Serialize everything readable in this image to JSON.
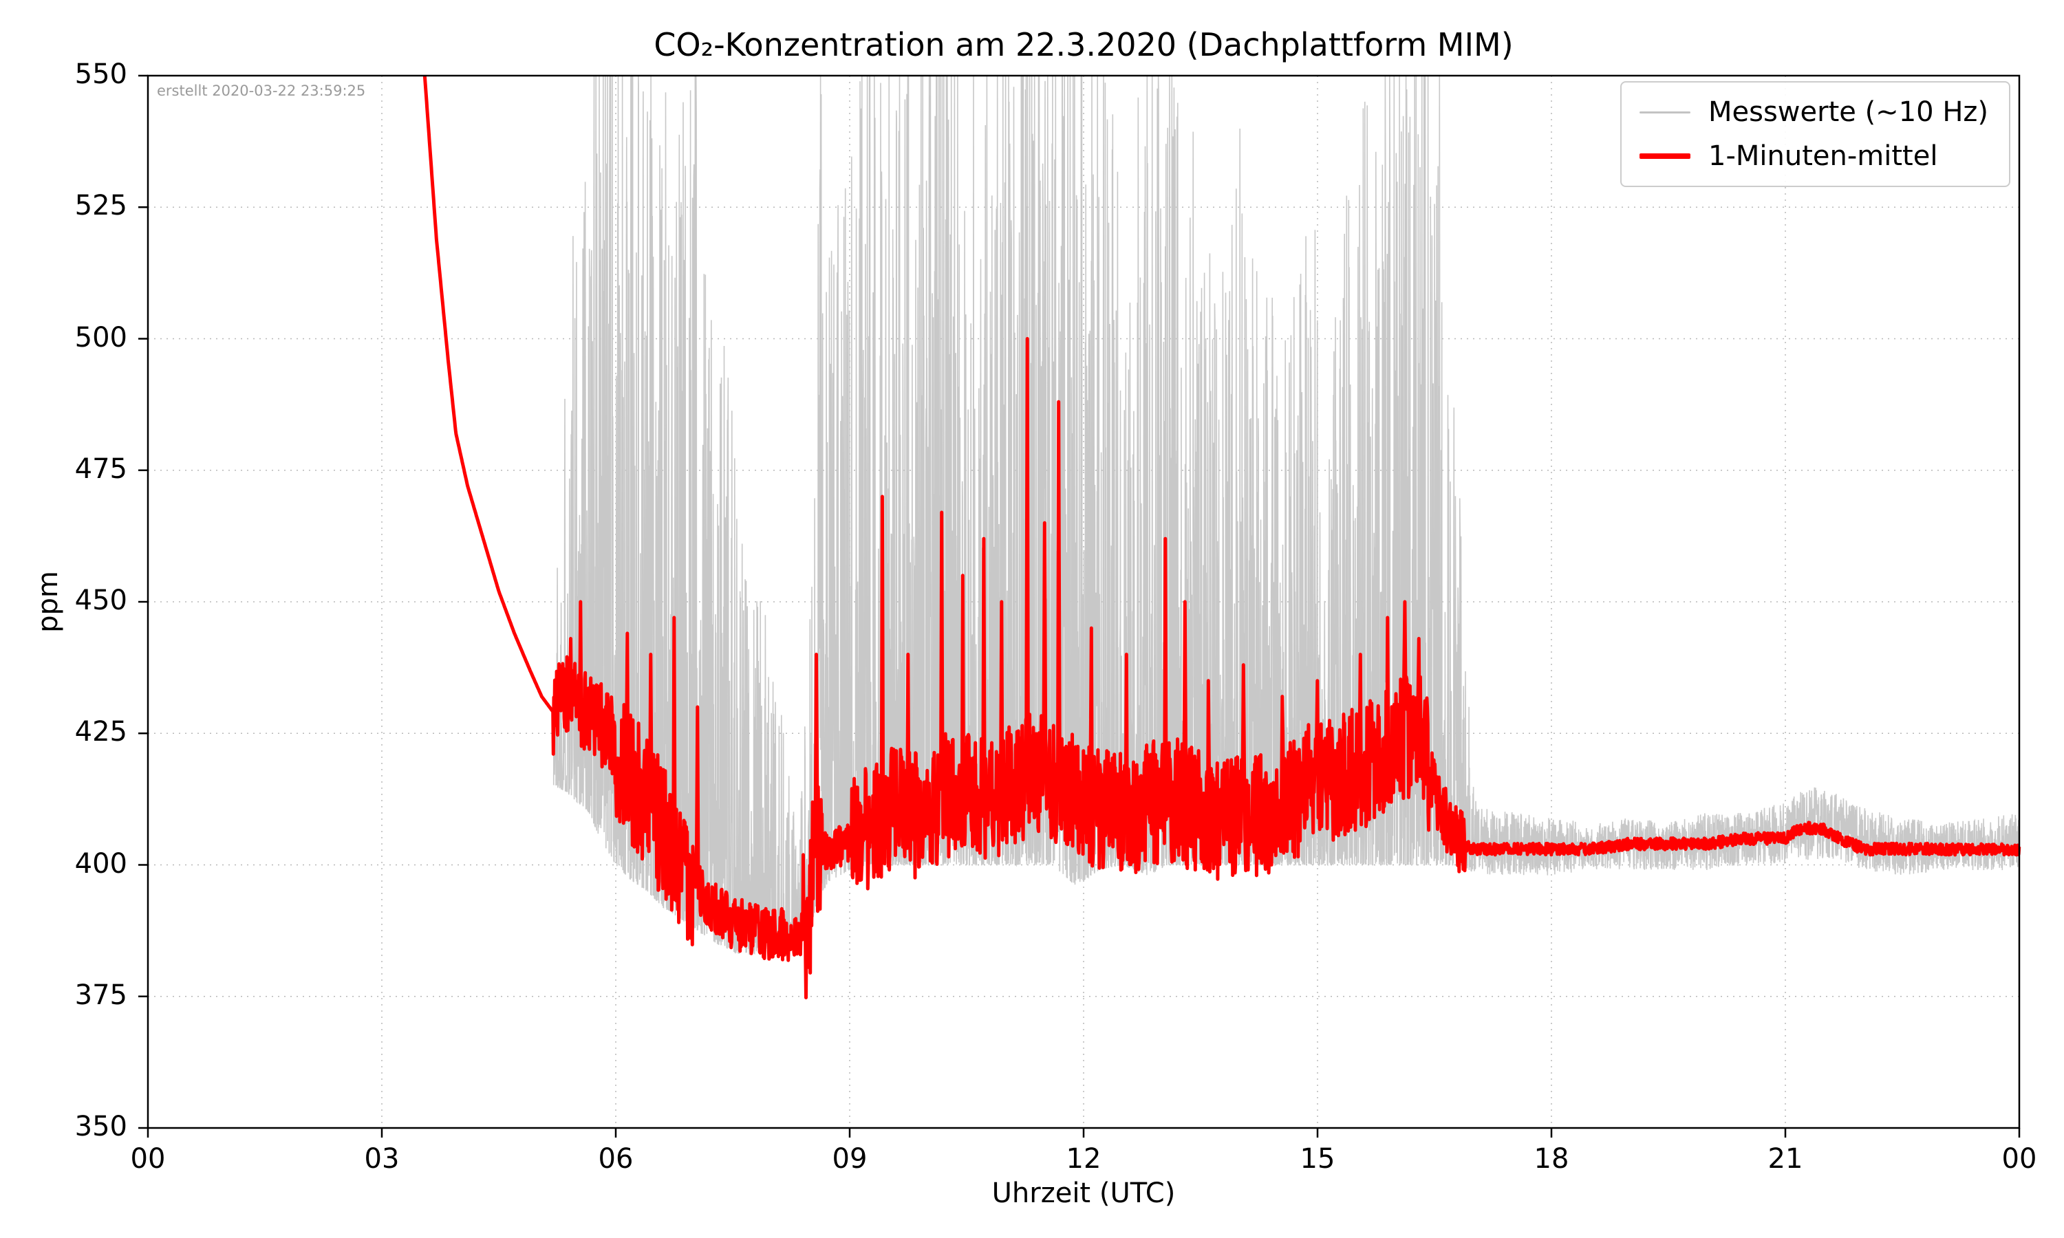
{
  "chart_data": {
    "type": "line",
    "title": "CO₂-Konzentration am 22.3.2020 (Dachplattform MIM)",
    "xlabel": "Uhrzeit (UTC)",
    "ylabel": "ppm",
    "annotation": "erstellt 2020-03-22 23:59:25",
    "xlim": [
      0,
      24
    ],
    "ylim": [
      350,
      550
    ],
    "xticks": {
      "values": [
        0,
        3,
        6,
        9,
        12,
        15,
        18,
        21,
        24
      ],
      "labels": [
        "00",
        "03",
        "06",
        "09",
        "12",
        "15",
        "18",
        "21",
        "00"
      ]
    },
    "yticks": {
      "values": [
        350,
        375,
        400,
        425,
        450,
        475,
        500,
        525,
        550
      ],
      "labels": [
        "350",
        "375",
        "400",
        "425",
        "450",
        "475",
        "500",
        "525",
        "550"
      ]
    },
    "grid": {
      "on": true,
      "style": "dotted",
      "color": "#b8b8b8"
    },
    "frame_color": "#000000",
    "legend": {
      "position": "upper right",
      "entries": [
        {
          "label": "Messwerte (~10 Hz)",
          "color": "#c3c3c3",
          "line_width": 3
        },
        {
          "label": "1-Minuten-mittel",
          "color": "#ff0000",
          "line_width": 8
        }
      ]
    },
    "series": [
      {
        "name": "Messwerte (~10 Hz)",
        "role": "raw-10hz-envelope",
        "color": "#c8c8c8",
        "envelope": [
          [
            5.2,
            415,
            450
          ],
          [
            5.35,
            414,
            500
          ],
          [
            5.5,
            412,
            545
          ],
          [
            5.65,
            410,
            585
          ],
          [
            5.8,
            405,
            600
          ],
          [
            6.0,
            400,
            570
          ],
          [
            6.2,
            397,
            600
          ],
          [
            6.4,
            395,
            565
          ],
          [
            6.6,
            392,
            545
          ],
          [
            6.8,
            390,
            555
          ],
          [
            7.0,
            388,
            570
          ],
          [
            7.2,
            386,
            530
          ],
          [
            7.4,
            384,
            500
          ],
          [
            7.6,
            383,
            470
          ],
          [
            7.8,
            383,
            460
          ],
          [
            8.0,
            384,
            445
          ],
          [
            8.2,
            385,
            420
          ],
          [
            8.35,
            386,
            405
          ],
          [
            8.5,
            388,
            450
          ],
          [
            8.6,
            394,
            570
          ],
          [
            8.75,
            397,
            520
          ],
          [
            9.0,
            399,
            540
          ],
          [
            9.2,
            400,
            580
          ],
          [
            9.5,
            400,
            600
          ],
          [
            9.8,
            400,
            570
          ],
          [
            10.1,
            400,
            600
          ],
          [
            10.4,
            400,
            580
          ],
          [
            10.7,
            400,
            560
          ],
          [
            11.0,
            400,
            600
          ],
          [
            11.3,
            400,
            610
          ],
          [
            11.6,
            400,
            590
          ],
          [
            11.9,
            396,
            570
          ],
          [
            12.2,
            399,
            560
          ],
          [
            12.5,
            400,
            540
          ],
          [
            12.8,
            398,
            560
          ],
          [
            13.1,
            400,
            570
          ],
          [
            13.4,
            400,
            540
          ],
          [
            13.7,
            400,
            510
          ],
          [
            14.0,
            400,
            545
          ],
          [
            14.3,
            400,
            520
          ],
          [
            14.6,
            400,
            500
          ],
          [
            14.9,
            400,
            525
          ],
          [
            15.2,
            400,
            510
          ],
          [
            15.5,
            400,
            540
          ],
          [
            15.8,
            400,
            555
          ],
          [
            16.1,
            400,
            575
          ],
          [
            16.35,
            400,
            600
          ],
          [
            16.6,
            400,
            545
          ],
          [
            16.8,
            400,
            480
          ],
          [
            16.95,
            399,
            430
          ],
          [
            17.05,
            398,
            411
          ],
          [
            17.5,
            398,
            410
          ],
          [
            18,
            398,
            409
          ],
          [
            18.5,
            399,
            408
          ],
          [
            19,
            399,
            409
          ],
          [
            19.5,
            399,
            408
          ],
          [
            20,
            399,
            410
          ],
          [
            20.5,
            400,
            410
          ],
          [
            21,
            400,
            412
          ],
          [
            21.3,
            401,
            415
          ],
          [
            21.6,
            401,
            414
          ],
          [
            22,
            399,
            411
          ],
          [
            22.5,
            398,
            409
          ],
          [
            23,
            399,
            408
          ],
          [
            23.5,
            399,
            409
          ],
          [
            24,
            399,
            410
          ]
        ]
      },
      {
        "name": "1-Minuten-mittel",
        "role": "one-minute-mean",
        "color": "#ff0000",
        "start_x": 3.55,
        "anchors": [
          [
            3.55,
            550
          ],
          [
            3.7,
            519
          ],
          [
            3.85,
            496
          ],
          [
            3.95,
            482
          ],
          [
            4.1,
            472
          ],
          [
            4.3,
            462
          ],
          [
            4.5,
            452
          ],
          [
            4.7,
            444
          ],
          [
            4.9,
            437
          ],
          [
            5.05,
            432
          ],
          [
            5.2,
            429
          ],
          [
            5.35,
            433
          ],
          [
            5.5,
            430
          ],
          [
            5.65,
            429
          ],
          [
            5.8,
            427
          ],
          [
            5.95,
            424
          ],
          [
            6.1,
            419
          ],
          [
            6.3,
            414
          ],
          [
            6.5,
            409
          ],
          [
            6.7,
            404
          ],
          [
            6.9,
            399
          ],
          [
            7.1,
            395
          ],
          [
            7.3,
            391
          ],
          [
            7.5,
            389
          ],
          [
            7.7,
            388
          ],
          [
            7.9,
            387
          ],
          [
            8.1,
            387
          ],
          [
            8.3,
            386
          ],
          [
            8.45,
            389
          ],
          [
            8.55,
            400
          ],
          [
            8.7,
            403
          ],
          [
            9.0,
            404
          ],
          [
            9.3,
            408
          ],
          [
            9.6,
            411
          ],
          [
            9.9,
            409
          ],
          [
            10.2,
            413
          ],
          [
            10.5,
            414
          ],
          [
            10.8,
            412
          ],
          [
            11.1,
            415
          ],
          [
            11.4,
            418
          ],
          [
            11.7,
            415
          ],
          [
            12.0,
            412
          ],
          [
            12.3,
            411
          ],
          [
            12.6,
            410
          ],
          [
            12.9,
            412
          ],
          [
            13.2,
            412
          ],
          [
            13.5,
            410
          ],
          [
            13.8,
            408
          ],
          [
            14.1,
            409
          ],
          [
            14.4,
            410
          ],
          [
            14.7,
            413
          ],
          [
            15.0,
            416
          ],
          [
            15.3,
            417
          ],
          [
            15.6,
            419
          ],
          [
            15.9,
            422
          ],
          [
            16.1,
            424
          ],
          [
            16.3,
            426
          ],
          [
            16.5,
            414
          ],
          [
            16.7,
            407
          ],
          [
            16.85,
            404
          ],
          [
            17.0,
            403
          ],
          [
            17.5,
            403
          ],
          [
            18.0,
            403
          ],
          [
            18.5,
            403
          ],
          [
            19.0,
            404
          ],
          [
            19.5,
            404
          ],
          [
            20.0,
            404
          ],
          [
            20.5,
            405
          ],
          [
            21.0,
            405
          ],
          [
            21.2,
            407
          ],
          [
            21.45,
            407
          ],
          [
            21.7,
            405
          ],
          [
            22.0,
            403
          ],
          [
            22.5,
            403
          ],
          [
            23.0,
            403
          ],
          [
            23.5,
            403
          ],
          [
            24.0,
            403
          ]
        ],
        "noise_amp_regions": [
          [
            3.55,
            5.2,
            0
          ],
          [
            5.2,
            6.0,
            8
          ],
          [
            6.0,
            7.0,
            13
          ],
          [
            7.0,
            8.4,
            5
          ],
          [
            8.4,
            8.65,
            15
          ],
          [
            8.65,
            9.0,
            4
          ],
          [
            9.0,
            16.45,
            12
          ],
          [
            16.45,
            16.9,
            6
          ],
          [
            16.9,
            24,
            1.1
          ]
        ],
        "peaks": [
          [
            5.42,
            443
          ],
          [
            5.55,
            450
          ],
          [
            6.15,
            444
          ],
          [
            6.45,
            440
          ],
          [
            6.75,
            447
          ],
          [
            7.05,
            430
          ],
          [
            8.57,
            440
          ],
          [
            9.42,
            470
          ],
          [
            9.75,
            440
          ],
          [
            10.18,
            467
          ],
          [
            10.45,
            455
          ],
          [
            10.72,
            462
          ],
          [
            10.95,
            450
          ],
          [
            11.28,
            500
          ],
          [
            11.5,
            465
          ],
          [
            11.68,
            488
          ],
          [
            12.1,
            445
          ],
          [
            12.55,
            440
          ],
          [
            13.05,
            462
          ],
          [
            13.3,
            450
          ],
          [
            13.6,
            435
          ],
          [
            14.05,
            438
          ],
          [
            14.55,
            432
          ],
          [
            15.0,
            435
          ],
          [
            15.55,
            440
          ],
          [
            15.9,
            447
          ],
          [
            16.12,
            450
          ],
          [
            16.3,
            443
          ]
        ]
      }
    ]
  }
}
